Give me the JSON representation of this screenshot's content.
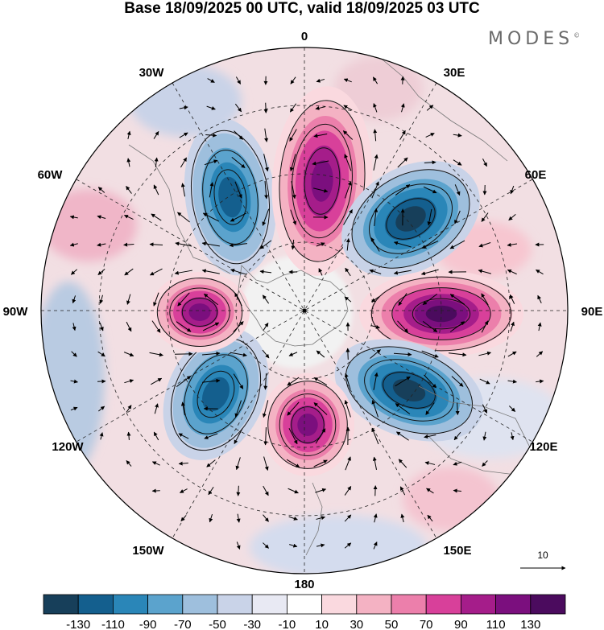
{
  "title": "Base 18/09/2025 00 UTC, valid 18/09/2025 03 UTC",
  "brand": "MODES",
  "brand_mark": "©",
  "longitude_labels": {
    "lon_0": "0",
    "lon_30e": "30E",
    "lon_60e": "60E",
    "lon_90e": "90E",
    "lon_120e": "120E",
    "lon_150e": "150E",
    "lon_180": "180",
    "lon_150w": "150W",
    "lon_120w": "120W",
    "lon_90w": "90W",
    "lon_60w": "60W",
    "lon_30w": "30W"
  },
  "vector_scale": {
    "label": "10"
  },
  "colorbar": {
    "ticks": [
      "-130",
      "-110",
      "-90",
      "-70",
      "-50",
      "-30",
      "-10",
      "10",
      "30",
      "50",
      "70",
      "90",
      "110",
      "130"
    ],
    "colors": [
      "#173f5a",
      "#145f8e",
      "#2a86b8",
      "#5ba3cd",
      "#9ebfdd",
      "#c9d3e8",
      "#e8e9f3",
      "#ffffff",
      "#fad9df",
      "#f4b2c3",
      "#ec7fab",
      "#d8409a",
      "#a51d8a",
      "#7b0f7e",
      "#4b0b5e"
    ]
  },
  "field": {
    "anomalies": [
      {
        "name": "anomaly-neg-30w",
        "color": "#145f8e",
        "value": -110
      },
      {
        "name": "anomaly-pos-0",
        "color": "#7b0f7e",
        "value": 110
      },
      {
        "name": "anomaly-neg-60e",
        "color": "#173f5a",
        "value": -130
      },
      {
        "name": "anomaly-pos-90e",
        "color": "#7b0f7e",
        "value": 130
      },
      {
        "name": "anomaly-neg-120e",
        "color": "#173f5a",
        "value": -130
      },
      {
        "name": "anomaly-pos-180",
        "color": "#7b0f7e",
        "value": 110
      },
      {
        "name": "anomaly-neg-150w",
        "color": "#145f8e",
        "value": -110
      },
      {
        "name": "anomaly-pos-90w",
        "color": "#7b0f7e",
        "value": 110
      }
    ]
  }
}
